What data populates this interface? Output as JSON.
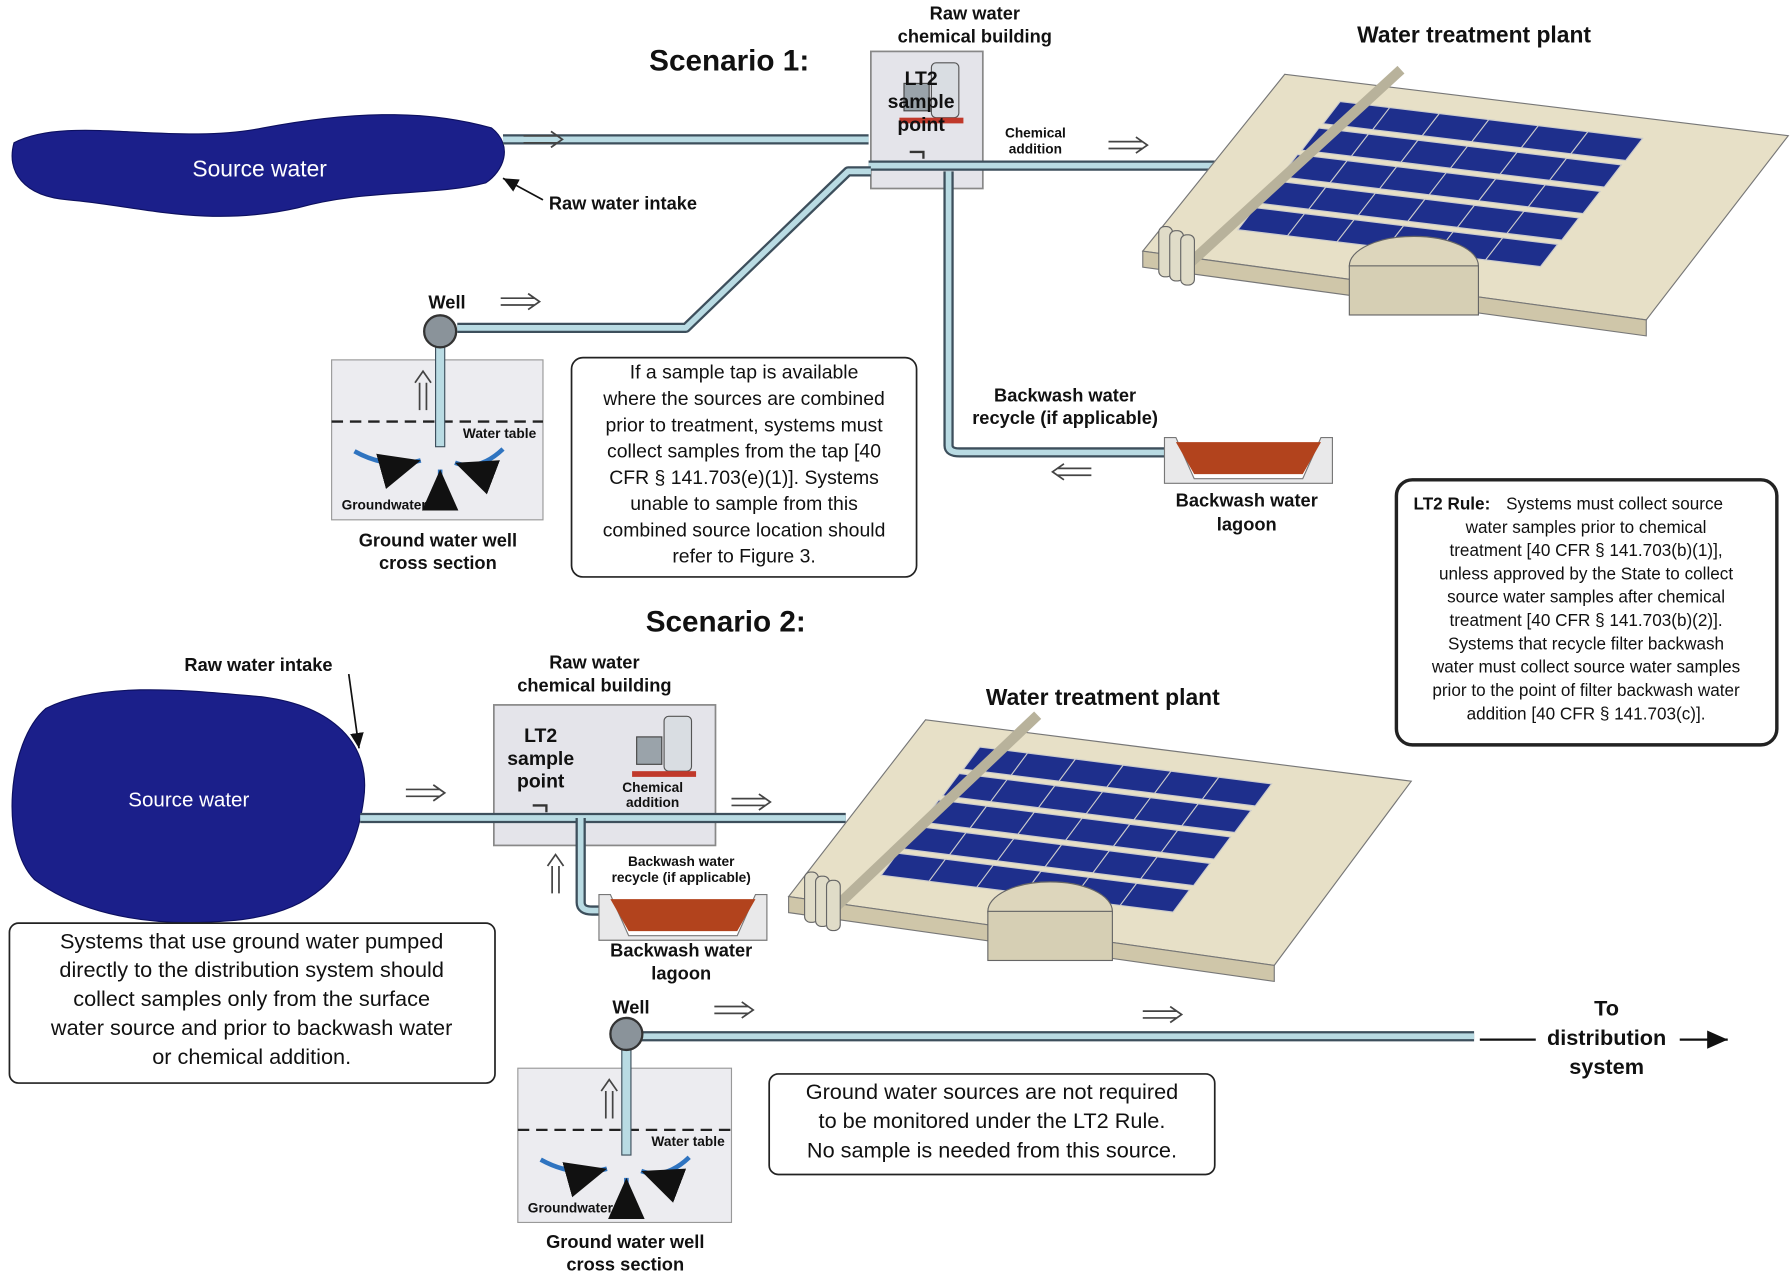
{
  "scenario1": {
    "title": "Scenario 1:",
    "source_water": "Source water",
    "raw_water_intake": "Raw water intake",
    "well": "Well",
    "chemical_building": [
      "Raw water",
      "chemical building"
    ],
    "sample_point": [
      "LT2",
      "sample",
      "point"
    ],
    "chemical_addition": [
      "Chemical",
      "addition"
    ],
    "plant": "Water treatment plant",
    "backwash_recycle": [
      "Backwash water",
      "recycle (if applicable)"
    ],
    "lagoon": [
      "Backwash water",
      "lagoon"
    ],
    "water_table": "Water table",
    "groundwater": "Groundwater",
    "well_section": [
      "Ground water well",
      "cross section"
    ],
    "note": [
      "If a sample tap is available",
      "where the sources are combined",
      "prior to treatment, systems must",
      "collect samples from the tap [40",
      "CFR § 141.703(e)(1)]. Systems",
      "unable to sample from this",
      "combined source location should",
      "refer to Figure 3."
    ]
  },
  "scenario2": {
    "title": "Scenario 2:",
    "raw_water_intake": "Raw water intake",
    "source_water": "Source water",
    "chemical_building": [
      "Raw water",
      "chemical building"
    ],
    "sample_point": [
      "LT2",
      "sample",
      "point"
    ],
    "chemical_addition": [
      "Chemical",
      "addition"
    ],
    "plant": "Water treatment plant",
    "backwash_recycle": [
      "Backwash water",
      "recycle (if applicable)"
    ],
    "lagoon": [
      "Backwash water",
      "lagoon"
    ],
    "well": "Well",
    "water_table": "Water table",
    "groundwater": "Groundwater",
    "well_section": [
      "Ground water well",
      "cross section"
    ],
    "distribution": [
      "To",
      "distribution",
      "system"
    ],
    "note_surface": [
      "Systems that use ground water pumped",
      "directly to the distribution system should",
      "collect samples only from the surface",
      "water source and prior to backwash water",
      "or chemical addition."
    ],
    "note_ground": [
      "Ground water sources are not required",
      "to be monitored under the LT2 Rule.",
      "No sample is needed from this source."
    ]
  },
  "rule_box": {
    "label": "LT2 Rule:",
    "lines": [
      "Systems must collect source",
      "water samples prior to chemical",
      "treatment [40 CFR § 141.703(b)(1)],",
      "unless approved by the State to collect",
      "source water samples after chemical",
      "treatment [40 CFR § 141.703(b)(2)].",
      "Systems that recycle filter backwash",
      "water must collect source water samples",
      "prior to the point of filter backwash water",
      "addition [40 CFR § 141.703(c)]."
    ]
  }
}
